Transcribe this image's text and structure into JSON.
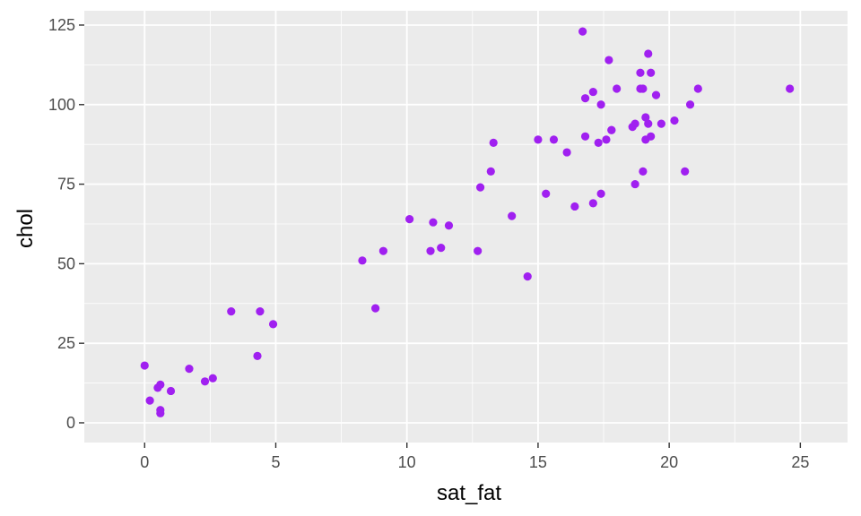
{
  "chart_data": {
    "type": "scatter",
    "title": "",
    "xlabel": "sat_fat",
    "ylabel": "chol",
    "xlim": [
      -2.3,
      26.8
    ],
    "ylim": [
      -6.2,
      129.5
    ],
    "xticks": [
      0,
      5,
      10,
      15,
      20,
      25
    ],
    "xtick_labels": [
      "0",
      "5",
      "10",
      "15",
      "20",
      "25"
    ],
    "yticks": [
      0,
      25,
      50,
      75,
      100,
      125
    ],
    "ytick_labels": [
      "0",
      "25",
      "50",
      "75",
      "100",
      "125"
    ],
    "grid": true,
    "point_color": "#A020F0",
    "panel_color": "#EBEBEB",
    "grid_color": "#FFFFFF",
    "points": [
      {
        "x": 0.0,
        "y": 18
      },
      {
        "x": 0.2,
        "y": 7
      },
      {
        "x": 0.5,
        "y": 11
      },
      {
        "x": 0.6,
        "y": 12
      },
      {
        "x": 0.6,
        "y": 3
      },
      {
        "x": 0.6,
        "y": 4
      },
      {
        "x": 1.0,
        "y": 10
      },
      {
        "x": 1.7,
        "y": 17
      },
      {
        "x": 2.3,
        "y": 13
      },
      {
        "x": 2.6,
        "y": 14
      },
      {
        "x": 3.3,
        "y": 35
      },
      {
        "x": 4.3,
        "y": 21
      },
      {
        "x": 4.4,
        "y": 35
      },
      {
        "x": 4.9,
        "y": 31
      },
      {
        "x": 8.3,
        "y": 51
      },
      {
        "x": 8.8,
        "y": 36
      },
      {
        "x": 9.1,
        "y": 54
      },
      {
        "x": 10.1,
        "y": 64
      },
      {
        "x": 10.9,
        "y": 54
      },
      {
        "x": 11.0,
        "y": 63
      },
      {
        "x": 11.3,
        "y": 55
      },
      {
        "x": 11.6,
        "y": 62
      },
      {
        "x": 12.7,
        "y": 54
      },
      {
        "x": 12.8,
        "y": 74
      },
      {
        "x": 13.2,
        "y": 79
      },
      {
        "x": 13.3,
        "y": 88
      },
      {
        "x": 14.0,
        "y": 65
      },
      {
        "x": 14.6,
        "y": 46
      },
      {
        "x": 15.0,
        "y": 89
      },
      {
        "x": 15.3,
        "y": 72
      },
      {
        "x": 15.6,
        "y": 89
      },
      {
        "x": 16.1,
        "y": 85
      },
      {
        "x": 16.4,
        "y": 68
      },
      {
        "x": 16.7,
        "y": 123
      },
      {
        "x": 16.8,
        "y": 102
      },
      {
        "x": 16.8,
        "y": 90
      },
      {
        "x": 17.1,
        "y": 104
      },
      {
        "x": 17.1,
        "y": 69
      },
      {
        "x": 17.3,
        "y": 88
      },
      {
        "x": 17.4,
        "y": 100
      },
      {
        "x": 17.4,
        "y": 72
      },
      {
        "x": 17.6,
        "y": 89
      },
      {
        "x": 17.7,
        "y": 114
      },
      {
        "x": 17.8,
        "y": 92
      },
      {
        "x": 17.8,
        "y": 92
      },
      {
        "x": 18.0,
        "y": 105
      },
      {
        "x": 18.6,
        "y": 93
      },
      {
        "x": 18.7,
        "y": 94
      },
      {
        "x": 18.7,
        "y": 75
      },
      {
        "x": 18.9,
        "y": 105
      },
      {
        "x": 18.9,
        "y": 110
      },
      {
        "x": 19.0,
        "y": 105
      },
      {
        "x": 19.0,
        "y": 79
      },
      {
        "x": 19.1,
        "y": 96
      },
      {
        "x": 19.1,
        "y": 89
      },
      {
        "x": 19.2,
        "y": 94
      },
      {
        "x": 19.2,
        "y": 116
      },
      {
        "x": 19.3,
        "y": 110
      },
      {
        "x": 19.3,
        "y": 90
      },
      {
        "x": 19.5,
        "y": 103
      },
      {
        "x": 19.7,
        "y": 94
      },
      {
        "x": 20.2,
        "y": 95
      },
      {
        "x": 20.6,
        "y": 79
      },
      {
        "x": 20.8,
        "y": 100
      },
      {
        "x": 21.1,
        "y": 105
      },
      {
        "x": 24.6,
        "y": 105
      }
    ]
  }
}
